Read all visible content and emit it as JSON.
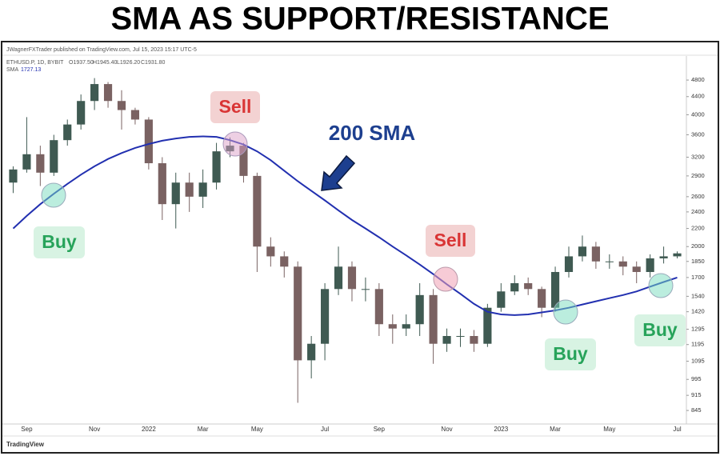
{
  "chart_data": {
    "type": "candlestick",
    "title": "SMA AS SUPPORT/RESISTANCE",
    "byline": "JWagnerFXTrader published on TradingView.com, Jul 15, 2023 15:17 UTC-5",
    "symbol_line": "ETHUSD.P, 1D, BYBIT",
    "ohlc_line": [
      "O1937.50",
      "H1945.40",
      "L1926.20",
      "C1931.80"
    ],
    "sma_legend": [
      "SMA",
      "1727.13"
    ],
    "footer": "TradingView",
    "categories": [
      null,
      "Sep",
      null,
      null,
      null,
      null,
      "Nov",
      null,
      null,
      null,
      "2022",
      null,
      null,
      null,
      "Mar",
      null,
      null,
      null,
      "May",
      null,
      null,
      null,
      null,
      "Jul",
      null,
      null,
      null,
      "Sep",
      null,
      null,
      null,
      null,
      "Nov",
      null,
      null,
      null,
      "2023",
      null,
      null,
      null,
      "Mar",
      null,
      null,
      null,
      "May",
      null,
      null,
      null,
      null,
      "Jul"
    ],
    "open": [
      2800,
      3000,
      3250,
      2950,
      3500,
      3800,
      4300,
      4700,
      4300,
      4100,
      3900,
      3100,
      2500,
      2800,
      2600,
      2800,
      3300,
      3400,
      2900,
      2000,
      1900,
      1800,
      1100,
      1200,
      1600,
      1800,
      1600,
      1600,
      1330,
      1300,
      1330,
      1550,
      1200,
      1250,
      1250,
      1200,
      1450,
      1580,
      1650,
      1600,
      1450,
      1750,
      1900,
      2000,
      1850,
      1850,
      1800,
      1750,
      1880,
      1900
    ],
    "high": [
      3050,
      3950,
      3400,
      3600,
      3900,
      4450,
      4850,
      4750,
      4550,
      4150,
      3950,
      3200,
      2950,
      2950,
      3000,
      3450,
      3550,
      3450,
      2950,
      2100,
      1950,
      1850,
      1250,
      1650,
      2000,
      1850,
      1700,
      1650,
      1400,
      1400,
      1650,
      1600,
      1300,
      1300,
      1290,
      1480,
      1650,
      1720,
      1700,
      1620,
      1800,
      2000,
      2120,
      2050,
      1920,
      1900,
      1850,
      1920,
      2000,
      1950
    ],
    "low": [
      2650,
      2950,
      2750,
      2900,
      3400,
      3700,
      4100,
      4150,
      3700,
      3800,
      3000,
      2300,
      2200,
      2400,
      2450,
      2700,
      3200,
      2800,
      1750,
      1800,
      1700,
      880,
      1000,
      1100,
      1550,
      1500,
      1500,
      1250,
      1200,
      1250,
      1250,
      1080,
      1150,
      1180,
      1150,
      1180,
      1420,
      1550,
      1550,
      1380,
      1420,
      1700,
      1850,
      1780,
      1780,
      1720,
      1650,
      1700,
      1830,
      1880
    ],
    "close": [
      3000,
      3250,
      2950,
      3500,
      3800,
      4300,
      4700,
      4300,
      4100,
      3900,
      3100,
      2500,
      2800,
      2600,
      2800,
      3300,
      3400,
      2900,
      2000,
      1900,
      1800,
      1100,
      1200,
      1600,
      1800,
      1600,
      1600,
      1330,
      1300,
      1330,
      1550,
      1200,
      1250,
      1250,
      1200,
      1450,
      1580,
      1650,
      1600,
      1450,
      1750,
      1900,
      2000,
      1850,
      1850,
      1800,
      1750,
      1880,
      1900,
      1930
    ],
    "up_color": "#3f5a52",
    "down_color": "#7a6262",
    "sma": {
      "name": "200 SMA",
      "color": "#2230b0",
      "values": [
        2200,
        2350,
        2500,
        2640,
        2780,
        2920,
        3050,
        3170,
        3270,
        3360,
        3430,
        3490,
        3530,
        3560,
        3570,
        3560,
        3500,
        3420,
        3300,
        3150,
        2980,
        2820,
        2680,
        2550,
        2420,
        2300,
        2200,
        2100,
        2000,
        1910,
        1820,
        1730,
        1640,
        1560,
        1480,
        1420,
        1400,
        1395,
        1400,
        1415,
        1430,
        1450,
        1475,
        1500,
        1525,
        1550,
        1580,
        1620,
        1660,
        1700
      ]
    },
    "log_y": true,
    "ylim": [
      787,
      5050
    ],
    "yticks": [
      4800,
      4400,
      4000,
      3600,
      3200,
      2900,
      2600,
      2400,
      2200,
      2000,
      1850,
      1700,
      1540,
      1420,
      1295,
      1195,
      1095,
      995,
      915,
      845
    ],
    "grid": false,
    "annotations": [
      {
        "text": "Buy",
        "kind": "buy"
      },
      {
        "text": "Sell",
        "kind": "sell"
      },
      {
        "text": "200 SMA",
        "kind": "label"
      },
      {
        "text": "Sell",
        "kind": "sell"
      },
      {
        "text": "Buy",
        "kind": "buy"
      },
      {
        "text": "Buy",
        "kind": "buy"
      }
    ]
  }
}
